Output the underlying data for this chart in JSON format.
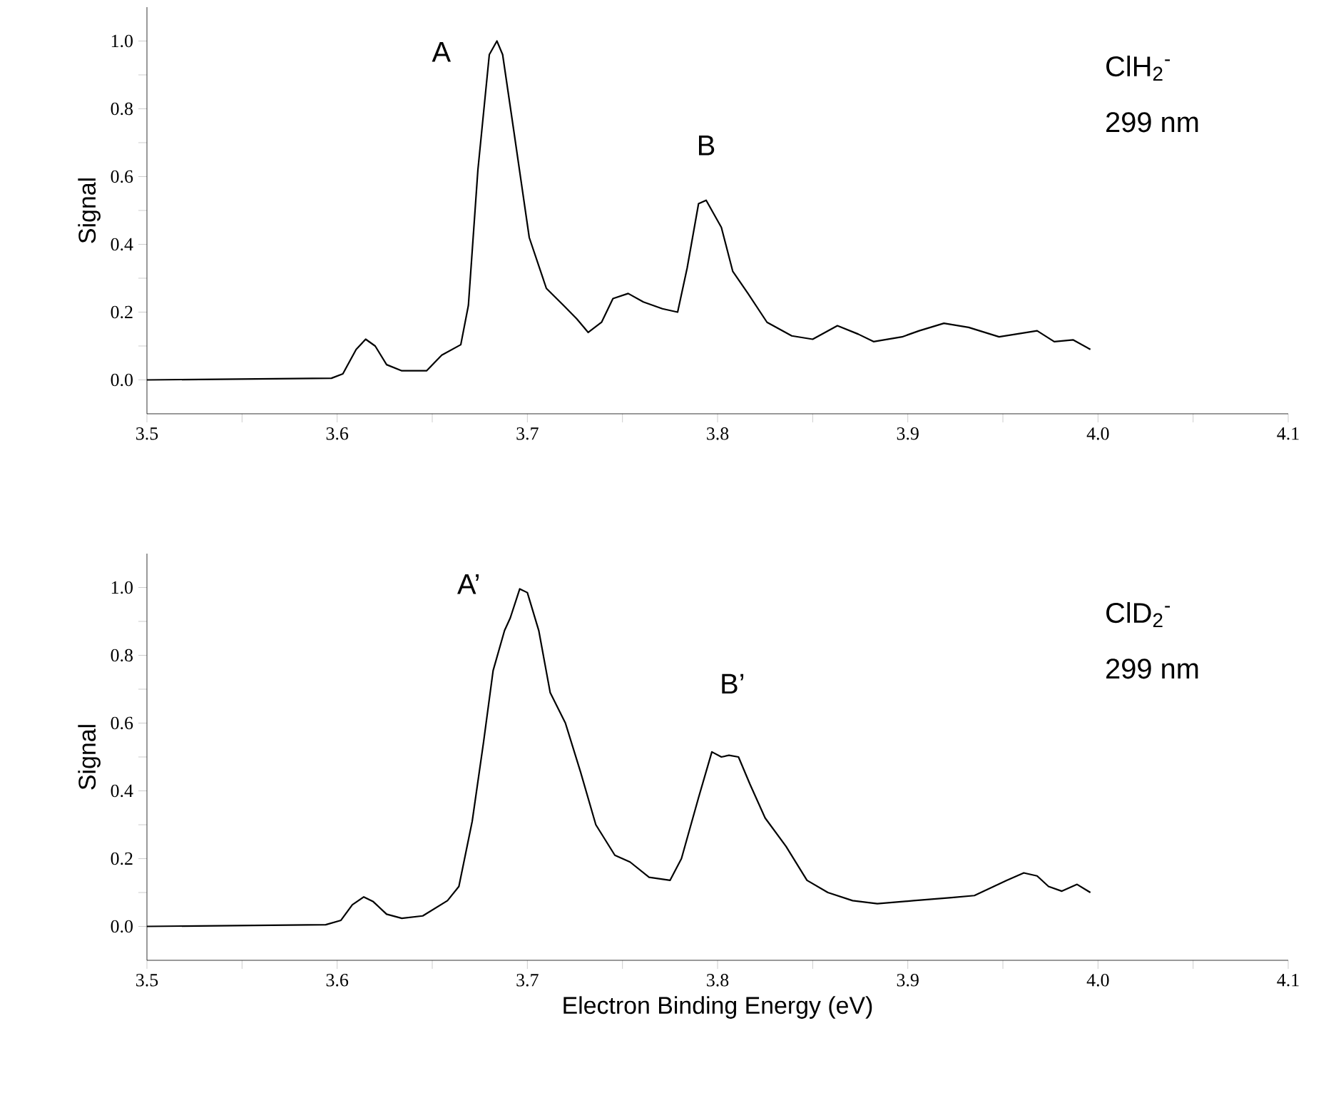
{
  "chart_data": [
    {
      "type": "line",
      "ylabel": "Signal",
      "x": [
        3.5,
        3.597,
        3.603,
        3.61,
        3.615,
        3.62,
        3.626,
        3.634,
        3.647,
        3.655,
        3.665,
        3.669,
        3.674,
        3.68,
        3.684,
        3.687,
        3.693,
        3.701,
        3.71,
        3.719,
        3.726,
        3.732,
        3.739,
        3.745,
        3.753,
        3.761,
        3.771,
        3.779,
        3.784,
        3.79,
        3.794,
        3.802,
        3.808,
        3.816,
        3.826,
        3.839,
        3.85,
        3.863,
        3.874,
        3.882,
        3.897,
        3.906,
        3.919,
        3.932,
        3.948,
        3.968,
        3.977,
        3.987,
        3.996
      ],
      "series": [
        {
          "color": "#000000",
          "values": [
            0.0,
            0.005,
            0.018,
            0.09,
            0.12,
            0.1,
            0.045,
            0.027,
            0.027,
            0.073,
            0.104,
            0.22,
            0.62,
            0.96,
            1.0,
            0.96,
            0.73,
            0.42,
            0.27,
            0.22,
            0.18,
            0.14,
            0.17,
            0.24,
            0.255,
            0.23,
            0.21,
            0.2,
            0.33,
            0.52,
            0.53,
            0.45,
            0.32,
            0.255,
            0.17,
            0.13,
            0.12,
            0.16,
            0.135,
            0.113,
            0.127,
            0.145,
            0.167,
            0.155,
            0.127,
            0.145,
            0.113,
            0.118,
            0.09
          ]
        }
      ],
      "xlim": [
        3.5,
        4.1
      ],
      "ylim": [
        -0.1,
        1.1
      ],
      "xticks": [
        {
          "value": 3.5,
          "label": "3.5"
        },
        {
          "value": 3.55,
          "label": null
        },
        {
          "value": 3.6,
          "label": "3.6"
        },
        {
          "value": 3.65,
          "label": null
        },
        {
          "value": 3.7,
          "label": "3.7"
        },
        {
          "value": 3.75,
          "label": null
        },
        {
          "value": 3.8,
          "label": "3.8"
        },
        {
          "value": 3.85,
          "label": null
        },
        {
          "value": 3.9,
          "label": "3.9"
        },
        {
          "value": 3.95,
          "label": null
        },
        {
          "value": 4.0,
          "label": "4.0"
        },
        {
          "value": 4.05,
          "label": null
        },
        {
          "value": 4.1,
          "label": "4.1"
        }
      ],
      "yticks": [
        {
          "value": 0,
          "label": "0.0"
        },
        {
          "value": 0.1,
          "label": null
        },
        {
          "value": 0.2,
          "label": "0.2"
        },
        {
          "value": 0.3,
          "label": null
        },
        {
          "value": 0.4,
          "label": "0.4"
        },
        {
          "value": 0.5,
          "label": null
        },
        {
          "value": 0.6,
          "label": "0.6"
        },
        {
          "value": 0.7,
          "label": null
        },
        {
          "value": 0.8,
          "label": "0.8"
        },
        {
          "value": 0.9,
          "label": null
        },
        {
          "value": 1.0,
          "label": "1.0"
        }
      ],
      "annotations": [
        "A",
        "B",
        "ClH$_{2}$$^{-}$",
        "299 nm"
      ]
    },
    {
      "type": "line",
      "ylabel": "Signal",
      "xlabel": "Electron Binding Energy (eV)",
      "x": [
        3.5,
        3.594,
        3.602,
        3.608,
        3.614,
        3.619,
        3.626,
        3.634,
        3.645,
        3.658,
        3.664,
        3.671,
        3.677,
        3.682,
        3.688,
        3.691,
        3.696,
        3.7,
        3.706,
        3.712,
        3.72,
        3.728,
        3.736,
        3.746,
        3.754,
        3.764,
        3.775,
        3.781,
        3.79,
        3.797,
        3.802,
        3.806,
        3.811,
        3.817,
        3.825,
        3.836,
        3.847,
        3.858,
        3.871,
        3.884,
        3.903,
        3.923,
        3.935,
        3.952,
        3.961,
        3.968,
        3.974,
        3.981,
        3.989,
        3.996
      ],
      "series": [
        {
          "color": "#000000",
          "values": [
            0.0,
            0.005,
            0.018,
            0.064,
            0.087,
            0.073,
            0.036,
            0.024,
            0.031,
            0.076,
            0.118,
            0.31,
            0.545,
            0.755,
            0.873,
            0.91,
            0.996,
            0.985,
            0.873,
            0.69,
            0.6,
            0.455,
            0.3,
            0.21,
            0.19,
            0.145,
            0.136,
            0.2,
            0.38,
            0.515,
            0.5,
            0.505,
            0.5,
            0.42,
            0.32,
            0.236,
            0.136,
            0.1,
            0.076,
            0.067,
            0.076,
            0.085,
            0.091,
            0.136,
            0.158,
            0.149,
            0.118,
            0.104,
            0.124,
            0.1
          ]
        }
      ],
      "xlim": [
        3.5,
        4.1
      ],
      "ylim": [
        -0.1,
        1.1
      ],
      "xticks": [
        {
          "value": 3.5,
          "label": "3.5"
        },
        {
          "value": 3.55,
          "label": null
        },
        {
          "value": 3.6,
          "label": "3.6"
        },
        {
          "value": 3.65,
          "label": null
        },
        {
          "value": 3.7,
          "label": "3.7"
        },
        {
          "value": 3.75,
          "label": null
        },
        {
          "value": 3.8,
          "label": "3.8"
        },
        {
          "value": 3.85,
          "label": null
        },
        {
          "value": 3.9,
          "label": "3.9"
        },
        {
          "value": 3.95,
          "label": null
        },
        {
          "value": 4.0,
          "label": "4.0"
        },
        {
          "value": 4.05,
          "label": null
        },
        {
          "value": 4.1,
          "label": "4.1"
        }
      ],
      "yticks": [
        {
          "value": 0,
          "label": "0.0"
        },
        {
          "value": 0.1,
          "label": null
        },
        {
          "value": 0.2,
          "label": "0.2"
        },
        {
          "value": 0.3,
          "label": null
        },
        {
          "value": 0.4,
          "label": "0.4"
        },
        {
          "value": 0.5,
          "label": null
        },
        {
          "value": 0.6,
          "label": "0.6"
        },
        {
          "value": 0.7,
          "label": null
        },
        {
          "value": 0.8,
          "label": "0.8"
        },
        {
          "value": 0.9,
          "label": null
        },
        {
          "value": 1.0,
          "label": "1.0"
        }
      ],
      "annotations": [
        "A’",
        "B’",
        "ClD$_{2}$$^{-}$",
        "299 nm"
      ]
    }
  ]
}
